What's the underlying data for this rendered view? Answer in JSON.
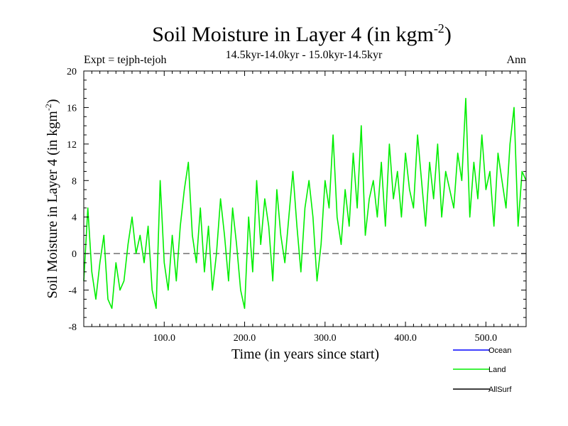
{
  "chart_data": {
    "type": "line",
    "title": "Soil Moisture in Layer 4 (in kgm",
    "title_superscript": "-2",
    "title_suffix": ")",
    "subtitle": "14.5kyr-14.0kyr - 15.0kyr-14.5kyr",
    "experiment_label": "Expt = tejph-tejoh",
    "season_label": "Ann",
    "xlabel": "Time (in years since start)",
    "ylabel": "Soil Moisture in Layer 4 (in kgm",
    "ylabel_superscript": "-2",
    "ylabel_suffix": ")",
    "xlim": [
      0,
      550
    ],
    "ylim": [
      -8,
      20
    ],
    "x_ticks": [
      100,
      200,
      300,
      400,
      500
    ],
    "x_tick_labels": [
      "100.0",
      "200.0",
      "300.0",
      "400.0",
      "500.0"
    ],
    "y_ticks": [
      -8,
      -4,
      0,
      4,
      8,
      12,
      16,
      20
    ],
    "y_tick_labels": [
      "-8",
      "-4",
      "0",
      "4",
      "8",
      "12",
      "16",
      "20"
    ],
    "zero_line": true,
    "legend": [
      {
        "name": "Ocean",
        "color": "#0000ff"
      },
      {
        "name": "Land",
        "color": "#00ee00"
      },
      {
        "name": "AllSurf",
        "color": "#000000"
      }
    ],
    "series": [
      {
        "name": "Land",
        "color": "#00ee00",
        "x": [
          0,
          5,
          10,
          15,
          20,
          25,
          30,
          35,
          40,
          45,
          50,
          55,
          60,
          65,
          70,
          75,
          80,
          85,
          90,
          95,
          100,
          105,
          110,
          115,
          120,
          125,
          130,
          135,
          140,
          145,
          150,
          155,
          160,
          165,
          170,
          175,
          180,
          185,
          190,
          195,
          200,
          205,
          210,
          215,
          220,
          225,
          230,
          235,
          240,
          245,
          250,
          255,
          260,
          265,
          270,
          275,
          280,
          285,
          290,
          295,
          300,
          305,
          310,
          315,
          320,
          325,
          330,
          335,
          340,
          345,
          350,
          355,
          360,
          365,
          370,
          375,
          380,
          385,
          390,
          395,
          400,
          405,
          410,
          415,
          420,
          425,
          430,
          435,
          440,
          445,
          450,
          455,
          460,
          465,
          470,
          475,
          480,
          485,
          490,
          495,
          500,
          505,
          510,
          515,
          520,
          525,
          530,
          535,
          540,
          545,
          550
        ],
        "values": [
          -3,
          5,
          -2,
          -5,
          -1,
          2,
          -5,
          -6,
          -1,
          -4,
          -3,
          1,
          4,
          0,
          2,
          -1,
          3,
          -4,
          -6,
          8,
          -1,
          -4,
          2,
          -3,
          3,
          7,
          10,
          2,
          -1,
          5,
          -2,
          3,
          -4,
          0,
          6,
          2,
          -3,
          5,
          1,
          -4,
          -6,
          4,
          -2,
          8,
          1,
          6,
          3,
          -3,
          7,
          2,
          -1,
          4,
          9,
          3,
          -2,
          5,
          8,
          4,
          -3,
          1,
          8,
          5,
          13,
          4,
          1,
          7,
          3,
          11,
          5,
          14,
          2,
          6,
          8,
          4,
          10,
          3,
          12,
          6,
          9,
          4,
          11,
          7,
          5,
          13,
          8,
          3,
          10,
          6,
          12,
          4,
          9,
          7,
          5,
          11,
          8,
          17,
          4,
          10,
          6,
          13,
          7,
          9,
          3,
          11,
          8,
          5,
          12,
          16,
          3,
          9,
          8
        ]
      }
    ]
  }
}
